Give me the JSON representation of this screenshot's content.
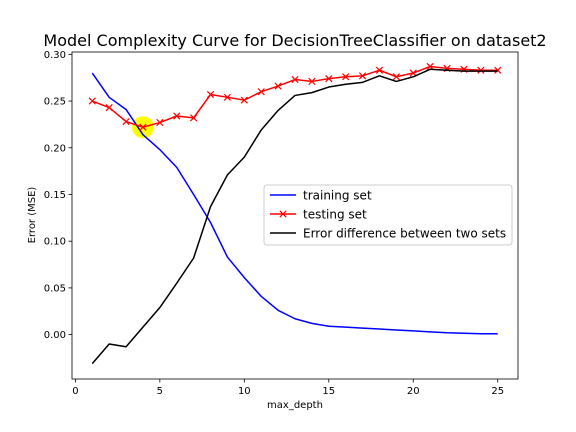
{
  "chart_data": {
    "type": "line",
    "title": "Model Complexity Curve for DecisionTreeClassifier on dataset2",
    "xlabel": "max_depth",
    "ylabel": "Error (MSE)",
    "xlim": [
      -0.2,
      26.2
    ],
    "ylim": [
      -0.0475,
      0.3025
    ],
    "xticks": [
      0,
      5,
      10,
      15,
      20,
      25
    ],
    "xtick_labels": [
      "0",
      "5",
      "10",
      "15",
      "20",
      "25"
    ],
    "yticks": [
      0.0,
      0.05,
      0.1,
      0.15,
      0.2,
      0.25,
      0.3
    ],
    "ytick_labels": [
      "0.00",
      "0.05",
      "0.10",
      "0.15",
      "0.20",
      "0.25",
      "0.30"
    ],
    "grid": false,
    "legend_position": "center-right",
    "x": [
      1,
      2,
      3,
      4,
      5,
      6,
      7,
      8,
      9,
      10,
      11,
      12,
      13,
      14,
      15,
      16,
      17,
      18,
      19,
      20,
      21,
      22,
      23,
      24,
      25
    ],
    "series": [
      {
        "name": "training set",
        "color": "#0000ff",
        "marker": "none",
        "values": [
          0.28,
          0.254,
          0.241,
          0.214,
          0.198,
          0.179,
          0.15,
          0.12,
          0.083,
          0.061,
          0.041,
          0.026,
          0.017,
          0.012,
          0.009,
          0.008,
          0.007,
          0.006,
          0.005,
          0.004,
          0.003,
          0.002,
          0.0015,
          0.001,
          0.001
        ]
      },
      {
        "name": "testing set",
        "color": "#ff0000",
        "marker": "x",
        "values": [
          0.25,
          0.243,
          0.228,
          0.222,
          0.227,
          0.234,
          0.232,
          0.257,
          0.254,
          0.251,
          0.26,
          0.266,
          0.273,
          0.271,
          0.274,
          0.276,
          0.277,
          0.283,
          0.276,
          0.28,
          0.287,
          0.285,
          0.284,
          0.283,
          0.283
        ]
      },
      {
        "name": "Error difference between two sets",
        "color": "#000000",
        "marker": "none",
        "values": [
          -0.031,
          -0.01,
          -0.013,
          0.008,
          0.029,
          0.055,
          0.082,
          0.137,
          0.171,
          0.19,
          0.219,
          0.24,
          0.256,
          0.259,
          0.265,
          0.268,
          0.27,
          0.277,
          0.271,
          0.276,
          0.284,
          0.283,
          0.282,
          0.282,
          0.282
        ]
      }
    ],
    "highlight": {
      "x": 4,
      "y": 0.222,
      "color": "#ffff00"
    }
  }
}
